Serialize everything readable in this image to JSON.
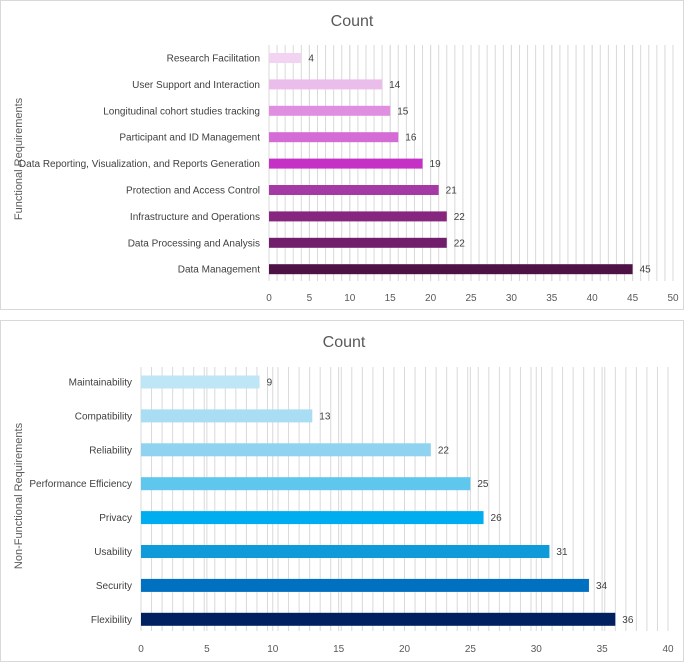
{
  "chart_data": [
    {
      "type": "bar",
      "orientation": "horizontal",
      "title": "Count",
      "xlabel": "",
      "ylabel": "Functional Requirements",
      "xlim": [
        0,
        50
      ],
      "xticks": [
        0,
        5,
        10,
        15,
        20,
        25,
        30,
        35,
        40,
        45,
        50
      ],
      "grid": true,
      "categories": [
        "Research Facilitation",
        "User Support and Interaction",
        "Longitudinal cohort studies tracking",
        "Participant and ID Management",
        "Data Reporting, Visualization, and Reports Generation",
        "Protection and Access Control",
        "Infrastructure and Operations",
        "Data Processing and Analysis",
        "Data Management"
      ],
      "values": [
        4,
        14,
        15,
        16,
        19,
        21,
        22,
        22,
        45
      ],
      "colors": [
        "#f2d3f2",
        "#ebbdeb",
        "#e08fe0",
        "#d56bd5",
        "#c530c5",
        "#a53aa5",
        "#86267f",
        "#721f6b",
        "#4e1245"
      ]
    },
    {
      "type": "bar",
      "orientation": "horizontal",
      "title": "Count",
      "xlabel": "",
      "ylabel": "Non-Functional Requirements",
      "xlim": [
        0,
        40
      ],
      "xticks": [
        0,
        5,
        10,
        15,
        20,
        25,
        30,
        35,
        40
      ],
      "grid": true,
      "categories": [
        "Maintainability",
        "Compatibility",
        "Reliability",
        "Performance Efficiency",
        "Privacy",
        "Usability",
        "Security",
        "Flexibility"
      ],
      "values": [
        9,
        13,
        22,
        25,
        26,
        31,
        34,
        36
      ],
      "colors": [
        "#bfe6f6",
        "#a8ddf3",
        "#8fd3f0",
        "#5fc6ee",
        "#00aeef",
        "#0f9ad9",
        "#0070c0",
        "#002060"
      ]
    }
  ]
}
